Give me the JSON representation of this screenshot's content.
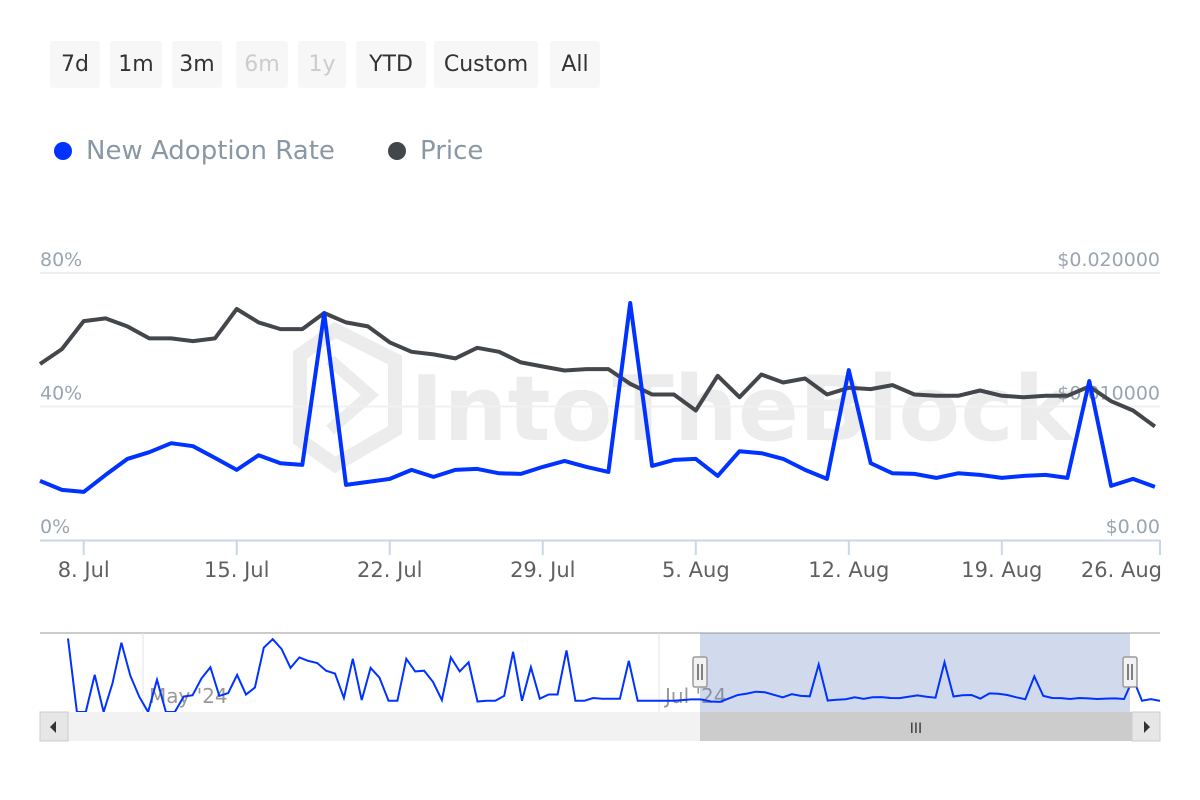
{
  "range_selector": {
    "buttons": [
      {
        "label": "7d",
        "disabled": false
      },
      {
        "label": "1m",
        "disabled": false
      },
      {
        "label": "3m",
        "disabled": false
      },
      {
        "label": "6m",
        "disabled": true
      },
      {
        "label": "1y",
        "disabled": true
      },
      {
        "label": "YTD",
        "disabled": false
      },
      {
        "label": "Custom",
        "disabled": false
      },
      {
        "label": "All",
        "disabled": false
      }
    ]
  },
  "watermark": "IntoTheBlock",
  "navigator": {
    "labels": [
      "May '24",
      "Jul '24"
    ],
    "earlier_values": [
      105,
      0,
      0,
      53,
      0,
      41,
      99,
      52,
      22,
      0,
      46,
      0,
      0,
      22,
      24,
      48,
      64,
      23,
      27,
      53,
      25,
      35,
      92,
      104,
      90,
      63,
      78,
      73,
      70,
      59,
      55,
      20,
      76,
      17,
      63,
      49,
      16,
      16,
      76,
      58,
      59,
      43,
      17,
      78,
      58,
      71,
      15,
      16,
      16,
      23,
      86,
      16,
      64,
      19,
      25,
      25,
      88,
      16,
      16,
      20,
      19,
      19,
      19,
      73,
      16,
      16,
      16,
      16,
      16,
      17,
      18,
      18
    ],
    "scrollbar_grip": "III",
    "left_arrow_icon": "triangle-left",
    "right_arrow_icon": "triangle-right"
  },
  "chart_data": {
    "type": "line",
    "legend": {
      "placement": "top-left"
    },
    "x": [
      "2024-07-06",
      "2024-07-07",
      "2024-07-08",
      "2024-07-09",
      "2024-07-10",
      "2024-07-11",
      "2024-07-12",
      "2024-07-13",
      "2024-07-14",
      "2024-07-15",
      "2024-07-16",
      "2024-07-17",
      "2024-07-18",
      "2024-07-19",
      "2024-07-20",
      "2024-07-21",
      "2024-07-22",
      "2024-07-23",
      "2024-07-24",
      "2024-07-25",
      "2024-07-26",
      "2024-07-27",
      "2024-07-28",
      "2024-07-29",
      "2024-07-30",
      "2024-07-31",
      "2024-08-01",
      "2024-08-02",
      "2024-08-03",
      "2024-08-04",
      "2024-08-05",
      "2024-08-06",
      "2024-08-07",
      "2024-08-08",
      "2024-08-09",
      "2024-08-10",
      "2024-08-11",
      "2024-08-12",
      "2024-08-13",
      "2024-08-14",
      "2024-08-15",
      "2024-08-16",
      "2024-08-17",
      "2024-08-18",
      "2024-08-19",
      "2024-08-20",
      "2024-08-21",
      "2024-08-22",
      "2024-08-23",
      "2024-08-24",
      "2024-08-25",
      "2024-08-26"
    ],
    "x_ticks": [
      "8. Jul",
      "15. Jul",
      "22. Jul",
      "29. Jul",
      "5. Aug",
      "12. Aug",
      "19. Aug",
      "26. Aug"
    ],
    "x_tick_dates": [
      "2024-07-08",
      "2024-07-15",
      "2024-07-22",
      "2024-07-29",
      "2024-08-05",
      "2024-08-12",
      "2024-08-19",
      "2024-08-26"
    ],
    "y_left": {
      "ticks": [
        "0%",
        "40%",
        "80%"
      ],
      "range": [
        0,
        80
      ]
    },
    "y_right": {
      "ticks": [
        "$0.00",
        "$0.010000",
        "$0.020000"
      ],
      "range": [
        0,
        0.02
      ]
    },
    "grid": true,
    "series": [
      {
        "name": "New Adoption Rate",
        "axis": "left",
        "color": "#0033ff",
        "values": [
          17.7,
          15,
          14.4,
          19.5,
          24.3,
          26.3,
          29,
          28.1,
          24.6,
          21,
          25.4,
          23,
          22.5,
          68,
          16.5,
          17.4,
          18.3,
          21,
          18.9,
          21,
          21.3,
          20,
          19.8,
          21.9,
          23.7,
          21.9,
          20.4,
          71,
          22.2,
          24,
          24.3,
          19.2,
          26.6,
          26,
          24.3,
          21,
          18.3,
          50.9,
          23,
          20,
          19.8,
          18.6,
          20,
          19.5,
          18.6,
          19.2,
          19.5,
          18.6,
          47.6,
          16.2,
          18.3,
          15.9
        ]
      },
      {
        "name": "Price",
        "axis": "right",
        "color": "#43474b",
        "values": [
          0.01318,
          0.0143,
          0.0164,
          0.0166,
          0.016,
          0.0151,
          0.0151,
          0.0149,
          0.0151,
          0.0173,
          0.0163,
          0.0158,
          0.0158,
          0.017,
          0.0163,
          0.016,
          0.0148,
          0.0141,
          0.0139,
          0.0136,
          0.0144,
          0.0141,
          0.0133,
          0.013,
          0.0127,
          0.0128,
          0.0128,
          0.0117,
          0.0109,
          0.0109,
          0.0097,
          0.0123,
          0.0107,
          0.0124,
          0.0118,
          0.0121,
          0.0109,
          0.0114,
          0.0113,
          0.0116,
          0.0109,
          0.0108,
          0.0108,
          0.0112,
          0.0108,
          0.0107,
          0.0108,
          0.0108,
          0.0115,
          0.0104,
          0.0097,
          0.0085
        ]
      }
    ]
  }
}
